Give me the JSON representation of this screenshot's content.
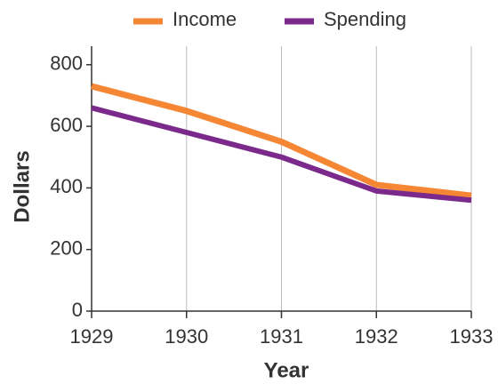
{
  "chart_data": {
    "type": "line",
    "x": [
      1929,
      1930,
      1931,
      1932,
      1933
    ],
    "series": [
      {
        "name": "Income",
        "color": "#f58634",
        "values": [
          730,
          650,
          550,
          410,
          375
        ]
      },
      {
        "name": "Spending",
        "color": "#7b2a8c",
        "values": [
          660,
          580,
          500,
          390,
          360
        ]
      }
    ],
    "xlabel": "Year",
    "ylabel": "Dollars",
    "xlim": [
      1929,
      1933
    ],
    "xticks": [
      1929,
      1930,
      1931,
      1932,
      1933
    ],
    "ylim": [
      0,
      860
    ],
    "yticks": [
      0,
      200,
      400,
      600,
      800
    ],
    "grid": true,
    "legend": "top"
  }
}
